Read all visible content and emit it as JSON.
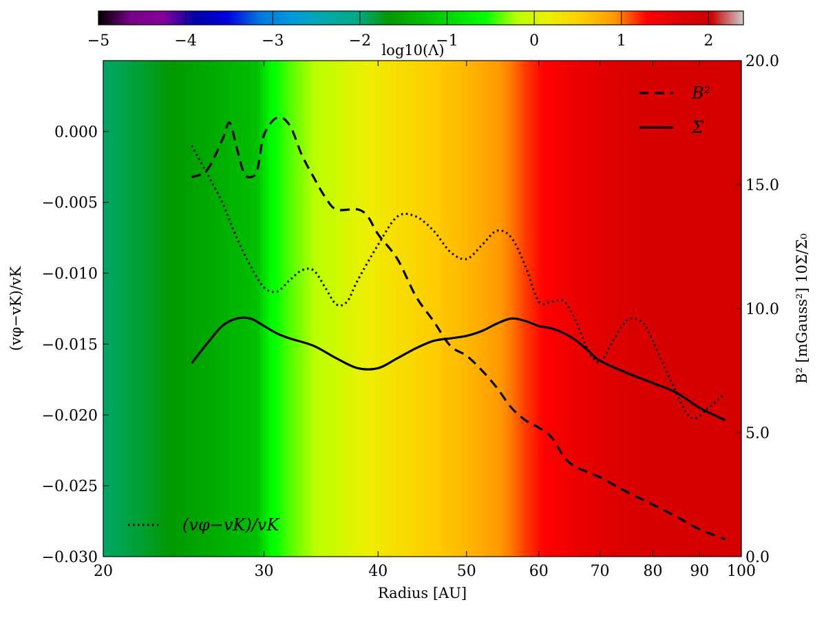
{
  "chart_data": {
    "type": "line",
    "xlabel": "Radius [AU]",
    "ylabel_left": "(vφ−vK)/vK",
    "ylabel_right": "B² [mGauss²] 10Σ/Σ₀",
    "x_scale": "log",
    "xlim": [
      20,
      100
    ],
    "ylim_left": [
      -0.03,
      0.005
    ],
    "ylim_right": [
      0.0,
      20.0
    ],
    "x_ticks": [
      20,
      30,
      40,
      50,
      60,
      70,
      80,
      90,
      100
    ],
    "x_tick_labels": [
      "20",
      "30",
      "40",
      "50",
      "60",
      "70",
      "80",
      "90",
      "100"
    ],
    "y_left_ticks": [
      0.0,
      -0.005,
      -0.01,
      -0.015,
      -0.02,
      -0.025,
      -0.03
    ],
    "y_left_tick_labels": [
      "0.000",
      "−0.005",
      "−0.010",
      "−0.015",
      "−0.020",
      "−0.025",
      "−0.030"
    ],
    "y_right_ticks": [
      0,
      5,
      10,
      15,
      20
    ],
    "y_right_tick_labels": [
      "0.0",
      "5.0",
      "10.0",
      "15.0",
      "20.0"
    ],
    "colorbar": {
      "label": "log10(Λ)",
      "range": [
        -5,
        2.4
      ],
      "ticks": [
        -5,
        -4,
        -3,
        -2,
        -1,
        0,
        1,
        2
      ],
      "tick_labels": [
        "−5",
        "−4",
        "−3",
        "−2",
        "−1",
        "0",
        "1",
        "2"
      ],
      "colormap": "nipy_spectral"
    },
    "background_lambda": {
      "radius": [
        20,
        22,
        24,
        26,
        28,
        29.5,
        30.5,
        32,
        34,
        36,
        38,
        40,
        43,
        46,
        50,
        53,
        56,
        58,
        62,
        66,
        70,
        75,
        80,
        85,
        90,
        95,
        100
      ],
      "log10_lambda": [
        -1.95,
        -1.8,
        -1.65,
        -1.5,
        -1.35,
        -1.25,
        -0.6,
        -0.4,
        -0.2,
        -0.05,
        0.1,
        0.25,
        0.4,
        0.55,
        0.7,
        0.85,
        1.0,
        1.15,
        1.35,
        1.5,
        1.6,
        1.7,
        1.75,
        1.8,
        1.8,
        1.82,
        1.85
      ]
    },
    "legend_upper_right": [
      {
        "label": "B²",
        "style": "dashed"
      },
      {
        "label": "Σ",
        "style": "solid"
      }
    ],
    "legend_lower_left": [
      {
        "label": "(vφ−vK)/vK",
        "style": "dotted"
      }
    ],
    "series": [
      {
        "name": "B²",
        "axis": "right",
        "style": "dashed",
        "x": [
          25,
          26,
          27,
          27.5,
          28,
          28.5,
          29,
          29.5,
          30,
          31,
          32,
          33,
          34,
          35,
          36,
          38,
          39,
          40,
          42,
          44,
          46,
          48,
          50,
          52,
          54,
          56,
          58,
          60,
          62,
          64,
          66,
          70,
          75,
          80,
          85,
          90,
          96
        ],
        "y": [
          15.3,
          15.6,
          16.8,
          17.5,
          16.5,
          15.5,
          15.3,
          15.6,
          17.0,
          17.7,
          17.4,
          16.2,
          15.3,
          14.5,
          14.0,
          14.0,
          13.7,
          13.0,
          12.0,
          10.5,
          9.5,
          8.5,
          8.1,
          7.5,
          6.8,
          6.0,
          5.5,
          5.2,
          4.8,
          4.0,
          3.6,
          3.2,
          2.6,
          2.1,
          1.6,
          1.1,
          0.7
        ]
      },
      {
        "name": "Σ",
        "axis": "right",
        "style": "solid",
        "x": [
          25,
          26,
          27,
          28,
          29,
          30,
          31,
          32,
          34,
          36,
          38,
          40,
          42,
          44,
          46,
          48,
          50,
          52,
          54,
          56,
          58,
          60,
          62,
          64,
          66,
          68,
          70,
          75,
          80,
          85,
          90,
          96
        ],
        "y": [
          7.8,
          8.6,
          9.3,
          9.6,
          9.6,
          9.3,
          9.0,
          8.8,
          8.5,
          8.0,
          7.6,
          7.6,
          8.0,
          8.4,
          8.7,
          8.8,
          8.9,
          9.1,
          9.4,
          9.6,
          9.5,
          9.3,
          9.2,
          9.0,
          8.7,
          8.3,
          7.9,
          7.4,
          7.0,
          6.6,
          6.0,
          5.5
        ]
      },
      {
        "name": "(vφ−vK)/vK",
        "axis": "left",
        "style": "dotted",
        "x": [
          25,
          26,
          27,
          28,
          29,
          30,
          31,
          32,
          33,
          34,
          35,
          36,
          37,
          38,
          40,
          42,
          44,
          46,
          48,
          50,
          52,
          54,
          56,
          58,
          60,
          62,
          64,
          66,
          68,
          70,
          72,
          75,
          78,
          80,
          84,
          88,
          92,
          96
        ],
        "y": [
          -0.001,
          -0.003,
          -0.005,
          -0.0075,
          -0.0095,
          -0.011,
          -0.0113,
          -0.0105,
          -0.0098,
          -0.0098,
          -0.011,
          -0.0122,
          -0.012,
          -0.0105,
          -0.008,
          -0.006,
          -0.006,
          -0.007,
          -0.0085,
          -0.009,
          -0.008,
          -0.007,
          -0.0075,
          -0.0095,
          -0.012,
          -0.012,
          -0.012,
          -0.0135,
          -0.0155,
          -0.0163,
          -0.015,
          -0.0133,
          -0.0135,
          -0.0148,
          -0.0178,
          -0.0202,
          -0.0195,
          -0.0185
        ]
      }
    ]
  }
}
